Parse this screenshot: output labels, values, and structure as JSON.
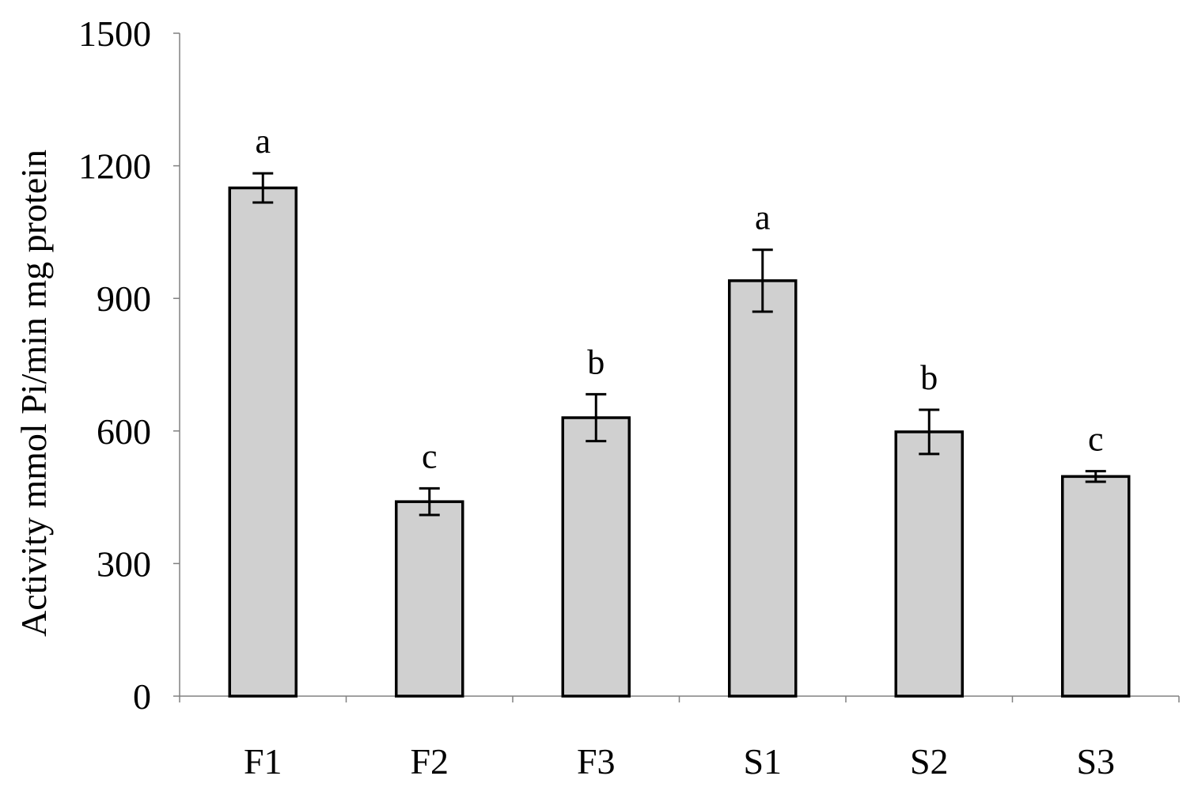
{
  "chart_data": {
    "type": "bar",
    "title": "",
    "xlabel": "",
    "ylabel": "Activity mmol Pi/min mg protein",
    "categories": [
      "F1",
      "F2",
      "F3",
      "S1",
      "S2",
      "S3"
    ],
    "values": [
      1150,
      440,
      630,
      940,
      598,
      497
    ],
    "error": [
      33,
      30,
      53,
      70,
      50,
      12
    ],
    "significance_letters": [
      "a",
      "c",
      "b",
      "a",
      "b",
      "c"
    ],
    "ylim": [
      0,
      1500
    ],
    "yticks": [
      0,
      300,
      600,
      900,
      1200,
      1500
    ],
    "grid": false,
    "legend": "none",
    "colors": {
      "bar_fill": "#d0d0d0",
      "bar_stroke": "#000000",
      "axis": "#808080",
      "text": "#000000"
    }
  }
}
